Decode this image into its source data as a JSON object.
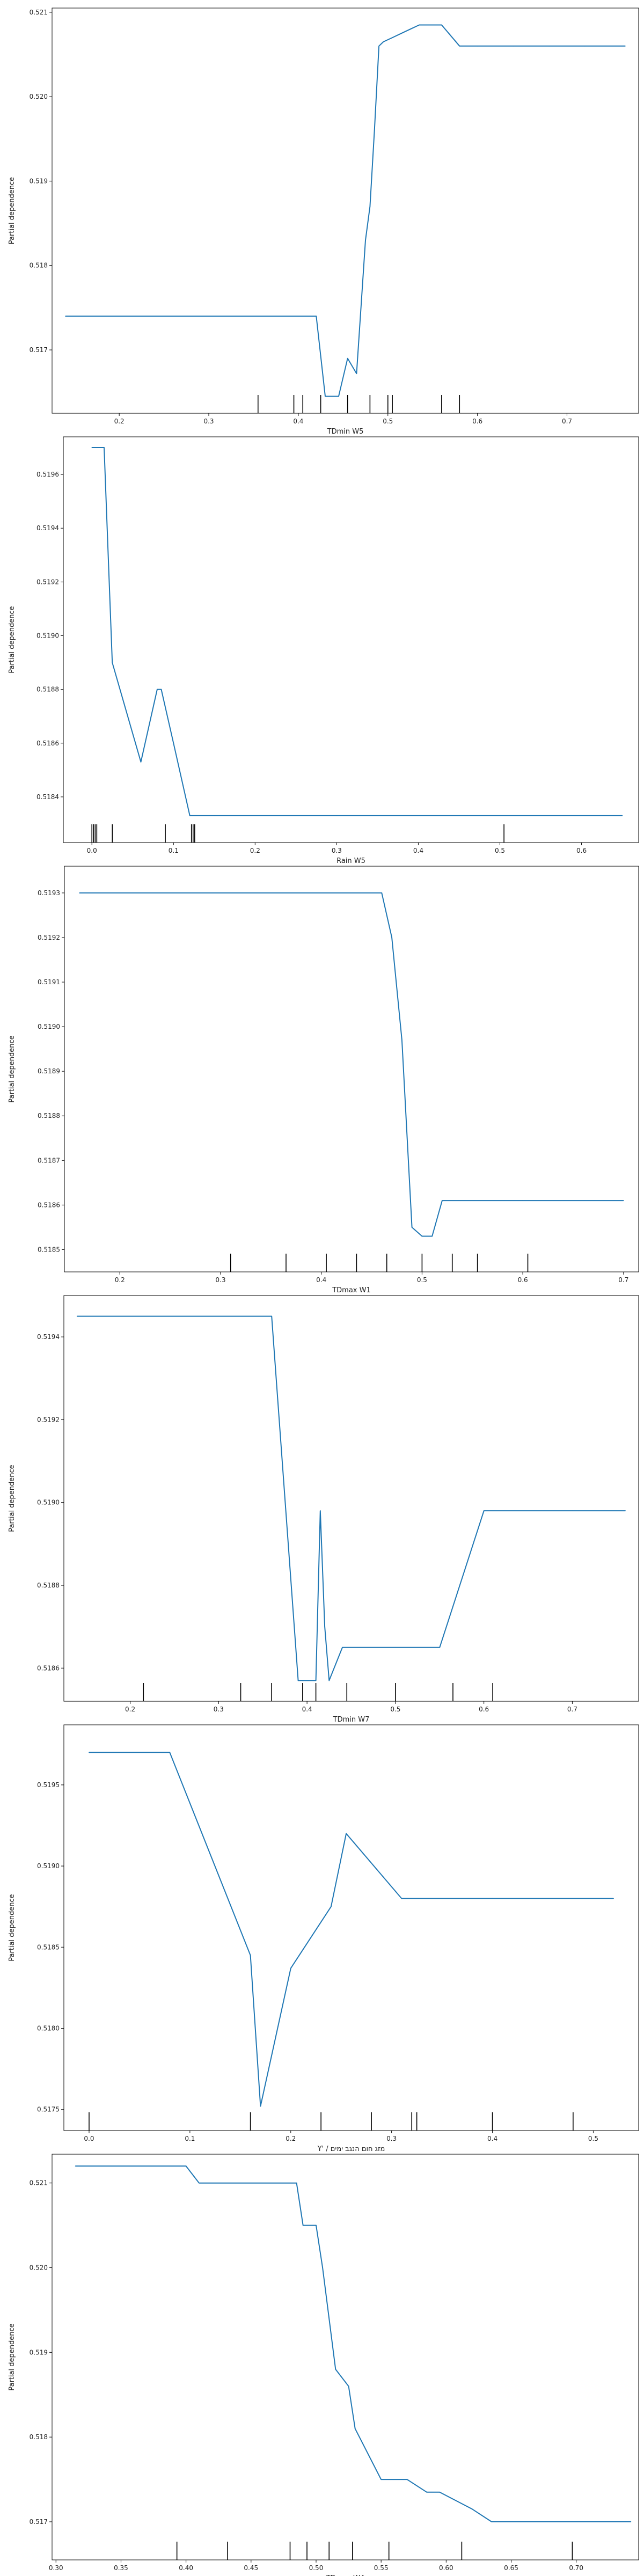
{
  "chart_data": [
    {
      "type": "line",
      "xlabel": "TDmin W5",
      "ylabel": "Partial dependence",
      "xlim": [
        0.125,
        0.78
      ],
      "ylim": [
        0.51625,
        0.52105
      ],
      "xticks": [
        0.2,
        0.3,
        0.4,
        0.5,
        0.6,
        0.7
      ],
      "yticks": [
        0.517,
        0.518,
        0.519,
        0.52,
        0.521
      ],
      "grid": false,
      "series": [
        {
          "color": "#1f77b4",
          "x": [
            0.14,
            0.42,
            0.43,
            0.445,
            0.455,
            0.465,
            0.475,
            0.48,
            0.485,
            0.49,
            0.495,
            0.505,
            0.515,
            0.525,
            0.535,
            0.545,
            0.56,
            0.58,
            0.6,
            0.64,
            0.68,
            0.72,
            0.765
          ],
          "y": [
            0.5174,
            0.5174,
            0.51645,
            0.51645,
            0.5169,
            0.51672,
            0.5183,
            0.5187,
            0.5196,
            0.5206,
            0.52065,
            0.5207,
            0.52075,
            0.5208,
            0.52085,
            0.52085,
            0.52085,
            0.5206,
            0.5206,
            0.5206,
            0.5206,
            0.5206,
            0.5206
          ]
        }
      ],
      "rug": [
        0.355,
        0.395,
        0.405,
        0.425,
        0.455,
        0.48,
        0.5,
        0.505,
        0.56,
        0.58
      ]
    },
    {
      "type": "line",
      "xlabel": "Rain W5",
      "ylabel": "Partial dependence",
      "xlim": [
        -0.035,
        0.67
      ],
      "ylim": [
        0.51823,
        0.51974
      ],
      "xticks": [
        0.0,
        0.1,
        0.2,
        0.3,
        0.4,
        0.5,
        0.6
      ],
      "yticks": [
        0.5184,
        0.5186,
        0.5188,
        0.519,
        0.5192,
        0.5194,
        0.5196
      ],
      "grid": false,
      "series": [
        {
          "color": "#1f77b4",
          "x": [
            0.0,
            0.015,
            0.025,
            0.06,
            0.08,
            0.085,
            0.1,
            0.12,
            0.15,
            0.3,
            0.45,
            0.65
          ],
          "y": [
            0.5197,
            0.5197,
            0.5189,
            0.51853,
            0.5188,
            0.5188,
            0.5186,
            0.51833,
            0.51833,
            0.51833,
            0.51833,
            0.51833
          ]
        }
      ],
      "rug": [
        0.0,
        0.002,
        0.004,
        0.006,
        0.025,
        0.09,
        0.122,
        0.124,
        0.126,
        0.505
      ]
    },
    {
      "type": "line",
      "xlabel": "TDmax W1",
      "ylabel": "Partial dependence",
      "xlim": [
        0.145,
        0.715
      ],
      "ylim": [
        0.51845,
        0.51936
      ],
      "xticks": [
        0.2,
        0.3,
        0.4,
        0.5,
        0.6,
        0.7
      ],
      "yticks": [
        0.5185,
        0.5186,
        0.5187,
        0.5188,
        0.5189,
        0.519,
        0.5191,
        0.5192,
        0.5193
      ],
      "grid": false,
      "series": [
        {
          "color": "#1f77b4",
          "x": [
            0.16,
            0.46,
            0.47,
            0.48,
            0.49,
            0.5,
            0.51,
            0.52,
            0.6,
            0.7
          ],
          "y": [
            0.5193,
            0.5193,
            0.5192,
            0.51897,
            0.51855,
            0.51853,
            0.51853,
            0.51861,
            0.51861,
            0.51861
          ]
        }
      ],
      "rug": [
        0.31,
        0.365,
        0.405,
        0.435,
        0.465,
        0.5,
        0.53,
        0.555,
        0.605
      ]
    },
    {
      "type": "line",
      "xlabel": "TDmin W7",
      "ylabel": "Partial dependence",
      "xlim": [
        0.125,
        0.775
      ],
      "ylim": [
        0.51852,
        0.5195
      ],
      "xticks": [
        0.2,
        0.3,
        0.4,
        0.5,
        0.6,
        0.7
      ],
      "yticks": [
        0.5186,
        0.5188,
        0.519,
        0.5192,
        0.5194
      ],
      "grid": false,
      "series": [
        {
          "color": "#1f77b4",
          "x": [
            0.14,
            0.36,
            0.39,
            0.4,
            0.41,
            0.415,
            0.42,
            0.425,
            0.44,
            0.5,
            0.55,
            0.6,
            0.7,
            0.76
          ],
          "y": [
            0.51945,
            0.51945,
            0.51857,
            0.51857,
            0.51857,
            0.51898,
            0.5187,
            0.51857,
            0.51865,
            0.51865,
            0.51865,
            0.51898,
            0.51898,
            0.51898
          ]
        }
      ],
      "rug": [
        0.215,
        0.325,
        0.36,
        0.395,
        0.41,
        0.445,
        0.5,
        0.565,
        0.61
      ]
    },
    {
      "type": "line",
      "xlabel": "Y' / מזג חום הנגב ימים",
      "ylabel": "Partial dependence",
      "xlim": [
        -0.025,
        0.545
      ],
      "ylim": [
        0.51737,
        0.51987
      ],
      "xticks": [
        0.0,
        0.1,
        0.2,
        0.3,
        0.4,
        0.5
      ],
      "yticks": [
        0.5175,
        0.518,
        0.5185,
        0.519,
        0.5195
      ],
      "grid": false,
      "series": [
        {
          "color": "#1f77b4",
          "x": [
            0.0,
            0.08,
            0.16,
            0.17,
            0.2,
            0.24,
            0.255,
            0.31,
            0.35,
            0.4,
            0.45,
            0.52
          ],
          "y": [
            0.5197,
            0.5197,
            0.51845,
            0.51752,
            0.51837,
            0.51875,
            0.5192,
            0.5188,
            0.5188,
            0.5188,
            0.5188,
            0.5188
          ]
        }
      ],
      "rug": [
        0.0,
        0.16,
        0.23,
        0.28,
        0.32,
        0.325,
        0.4,
        0.48
      ]
    },
    {
      "type": "line",
      "xlabel": "TDmax W4",
      "ylabel": "Partial dependence",
      "xlim": [
        0.297,
        0.748
      ],
      "ylim": [
        0.51655,
        0.52134
      ],
      "xticks": [
        0.3,
        0.35,
        0.4,
        0.45,
        0.5,
        0.55,
        0.6,
        0.65,
        0.7
      ],
      "yticks": [
        0.517,
        0.518,
        0.519,
        0.52,
        0.521
      ],
      "grid": false,
      "series": [
        {
          "color": "#1f77b4",
          "x": [
            0.315,
            0.4,
            0.41,
            0.485,
            0.49,
            0.5,
            0.505,
            0.515,
            0.525,
            0.53,
            0.55,
            0.57,
            0.585,
            0.595,
            0.62,
            0.635,
            0.7,
            0.742
          ],
          "y": [
            0.5212,
            0.5212,
            0.521,
            0.521,
            0.5205,
            0.5205,
            0.52,
            0.5188,
            0.5186,
            0.5181,
            0.5175,
            0.5175,
            0.51735,
            0.51735,
            0.51715,
            0.517,
            0.517,
            0.517
          ]
        }
      ],
      "rug": [
        0.393,
        0.432,
        0.48,
        0.493,
        0.51,
        0.528,
        0.556,
        0.612,
        0.697
      ]
    }
  ]
}
